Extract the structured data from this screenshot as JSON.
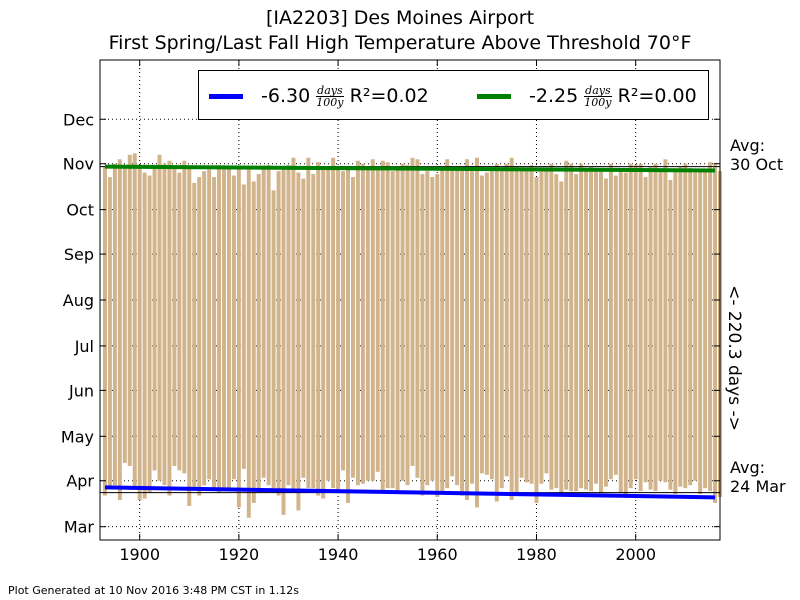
{
  "title": {
    "line1": "[IA2203] Des Moines Airport",
    "line2": "First Spring/Last Fall High Temperature Above Threshold 70°F"
  },
  "footer": "Plot Generated at 10 Nov 2016 3:48 PM CST in 1.12s",
  "legend": {
    "spring": {
      "slope": "-6.30",
      "units_num": "days",
      "units_den": "100y",
      "r2_label": "R²=0.02",
      "color": "#0000ff"
    },
    "fall": {
      "slope": "-2.25",
      "units_num": "days",
      "units_den": "100y",
      "r2_label": "R²=0.00",
      "color": "#008000"
    }
  },
  "annotations": {
    "fall_avg_line1": "Avg:",
    "fall_avg_line2": "30 Oct",
    "spring_avg_line1": "Avg:",
    "spring_avg_line2": "24 Mar",
    "range": "<- 220.3 days ->"
  },
  "chart_data": {
    "type": "bar",
    "title": "[IA2203] Des Moines Airport\nFirst Spring/Last Fall High Temperature Above Threshold 70°F",
    "bar_color": "#d2b48c",
    "x_range": [
      1892,
      2017
    ],
    "x_ticks": [
      1900,
      1920,
      1940,
      1960,
      1980,
      2000
    ],
    "y_unit": "day of year",
    "y_range": [
      51,
      375
    ],
    "y_ticks": [
      {
        "label": "Mar",
        "value": 60
      },
      {
        "label": "Apr",
        "value": 91
      },
      {
        "label": "May",
        "value": 121
      },
      {
        "label": "Jun",
        "value": 152
      },
      {
        "label": "Jul",
        "value": 182
      },
      {
        "label": "Aug",
        "value": 213
      },
      {
        "label": "Sep",
        "value": 244
      },
      {
        "label": "Oct",
        "value": 274
      },
      {
        "label": "Nov",
        "value": 305
      },
      {
        "label": "Dec",
        "value": 335
      }
    ],
    "grid": true,
    "years_start": 1893,
    "first_spring_doy": [
      81,
      86,
      88,
      78,
      103,
      101,
      86,
      78,
      79,
      83,
      98,
      91,
      88,
      81,
      101,
      98,
      96,
      74,
      86,
      81,
      88,
      92,
      86,
      83,
      86,
      84,
      92,
      73,
      99,
      66,
      76,
      83,
      93,
      88,
      86,
      81,
      68,
      88,
      84,
      71,
      93,
      86,
      86,
      81,
      79,
      91,
      86,
      83,
      98,
      76,
      93,
      88,
      89,
      91,
      91,
      97,
      83,
      86,
      86,
      83,
      91,
      88,
      101,
      93,
      81,
      88,
      91,
      80,
      82,
      86,
      94,
      88,
      81,
      78,
      89,
      73,
      96,
      95,
      92,
      77,
      86,
      94,
      78,
      82,
      93,
      90,
      89,
      76,
      89,
      96,
      85,
      86,
      83,
      85,
      84,
      84,
      86,
      85,
      84,
      89,
      83,
      87,
      92,
      95,
      83,
      80,
      86,
      92,
      84,
      90,
      85,
      84,
      91,
      90,
      85,
      82,
      87,
      86,
      88,
      91,
      82,
      86,
      84,
      76,
      80
    ],
    "last_fall_doy": [
      303,
      296,
      305,
      308,
      304,
      311,
      312,
      302,
      299,
      297,
      304,
      311,
      305,
      307,
      303,
      299,
      307,
      303,
      292,
      296,
      300,
      301,
      296,
      304,
      303,
      303,
      297,
      303,
      291,
      301,
      293,
      298,
      301,
      304,
      287,
      300,
      303,
      304,
      309,
      299,
      295,
      309,
      298,
      306,
      301,
      303,
      309,
      302,
      300,
      303,
      296,
      307,
      305,
      301,
      308,
      303,
      307,
      306,
      300,
      302,
      305,
      304,
      309,
      308,
      298,
      300,
      296,
      298,
      302,
      308,
      303,
      301,
      301,
      308,
      300,
      309,
      297,
      299,
      300,
      305,
      301,
      305,
      309,
      303,
      300,
      301,
      304,
      296,
      302,
      301,
      305,
      298,
      293,
      307,
      305,
      298,
      305,
      300,
      303,
      301,
      301,
      295,
      305,
      297,
      300,
      299,
      305,
      304,
      305,
      296,
      303,
      305,
      301,
      308,
      294,
      300,
      303,
      305,
      302,
      299,
      301,
      300,
      306,
      305,
      300
    ],
    "regression": {
      "spring": {
        "slope_days_per_100y": -6.3,
        "r2": 0.02,
        "start": [
          1893,
          86.5
        ],
        "end": [
          2016,
          79.8
        ]
      },
      "fall": {
        "slope_days_per_100y": -2.25,
        "r2": 0.0,
        "start": [
          1893,
          303.0
        ],
        "end": [
          2016,
          300.4
        ]
      }
    },
    "averages": {
      "spring_doy": 83,
      "fall_doy": 303
    },
    "avg_range_days": 220.3
  }
}
